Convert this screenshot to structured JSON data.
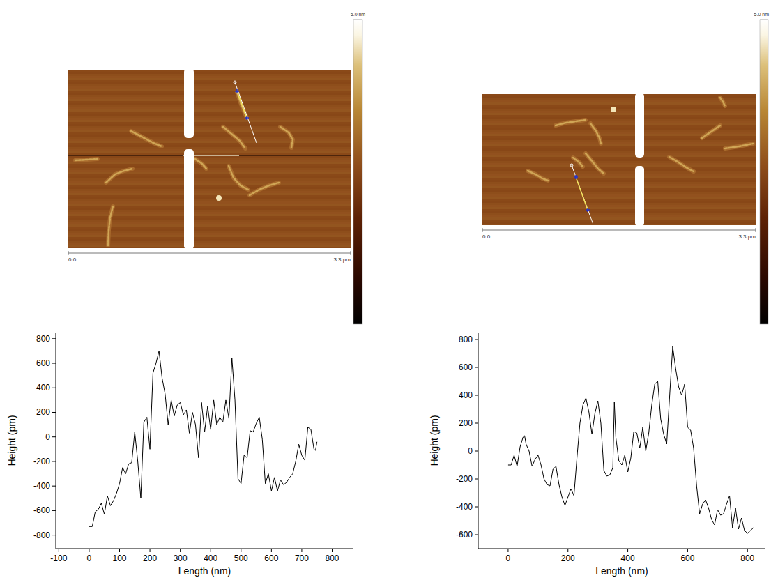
{
  "chart_data": [
    {
      "type": "image",
      "colorbar": {
        "range": [
          0,
          5
        ],
        "ticks": [
          {
            "value": 5,
            "label": "5.0 nm"
          }
        ]
      },
      "scale_bar": {
        "range": [
          0,
          3.3
        ],
        "ticks": [
          {
            "value": 0,
            "label": "0.0"
          },
          {
            "value": 3.3,
            "label": "3.3 µm"
          }
        ]
      }
    },
    {
      "type": "image",
      "colorbar": {
        "range": [
          0,
          5
        ],
        "ticks": [
          {
            "value": 5,
            "label": "5.0 nm"
          }
        ]
      },
      "scale_bar": {
        "range": [
          0,
          3.3
        ],
        "ticks": [
          {
            "value": 0,
            "label": "0.0"
          },
          {
            "value": 3.3,
            "label": "3.3 µm"
          }
        ]
      }
    },
    {
      "type": "line",
      "xlabel": "Length (nm)",
      "ylabel": "Height (pm)",
      "xlim": [
        -110,
        870
      ],
      "ylim": [
        -910,
        850
      ],
      "xticks": [
        -100,
        0,
        100,
        200,
        300,
        400,
        500,
        600,
        700,
        800
      ],
      "yticks": [
        -800,
        -600,
        -400,
        -200,
        0,
        200,
        400,
        600,
        800
      ],
      "x": [
        0,
        10,
        20,
        30,
        40,
        50,
        60,
        70,
        80,
        90,
        100,
        110,
        120,
        130,
        140,
        150,
        160,
        170,
        180,
        190,
        200,
        210,
        220,
        230,
        240,
        250,
        260,
        270,
        280,
        290,
        300,
        310,
        320,
        330,
        340,
        350,
        360,
        370,
        380,
        390,
        400,
        410,
        420,
        430,
        440,
        450,
        460,
        470,
        480,
        490,
        500,
        510,
        520,
        530,
        540,
        550,
        560,
        570,
        580,
        590,
        600,
        610,
        620,
        630,
        640,
        650,
        660,
        670,
        680,
        690,
        700,
        710,
        720,
        730,
        740,
        745,
        750
      ],
      "series": [
        {
          "color": "#000000",
          "values": [
            -730,
            -730,
            -610,
            -590,
            -540,
            -630,
            -480,
            -560,
            -520,
            -460,
            -380,
            -250,
            -300,
            -220,
            -210,
            40,
            -200,
            -500,
            120,
            160,
            -100,
            520,
            600,
            700,
            480,
            350,
            100,
            300,
            170,
            260,
            280,
            180,
            220,
            30,
            200,
            100,
            -170,
            280,
            40,
            250,
            60,
            300,
            100,
            160,
            120,
            300,
            150,
            640,
            300,
            -340,
            -380,
            -150,
            -170,
            50,
            40,
            110,
            160,
            -20,
            -380,
            -300,
            -440,
            -330,
            -440,
            -350,
            -390,
            -370,
            -330,
            -300,
            -200,
            -60,
            -150,
            -190,
            80,
            60,
            -100,
            -110,
            -40
          ]
        }
      ]
    },
    {
      "type": "line",
      "xlabel": "Length (nm)",
      "ylabel": "Height (pm)",
      "xlim": [
        -100,
        860
      ],
      "ylim": [
        -700,
        850
      ],
      "xticks": [
        0,
        200,
        400,
        600,
        800
      ],
      "yticks": [
        -600,
        -400,
        -200,
        0,
        200,
        400,
        600,
        800
      ],
      "x": [
        0,
        10,
        20,
        30,
        40,
        50,
        55,
        60,
        70,
        80,
        90,
        100,
        110,
        120,
        130,
        140,
        150,
        160,
        170,
        180,
        190,
        200,
        210,
        220,
        230,
        240,
        250,
        260,
        270,
        280,
        290,
        300,
        310,
        320,
        330,
        340,
        350,
        355,
        360,
        370,
        380,
        390,
        400,
        410,
        420,
        430,
        440,
        450,
        460,
        470,
        480,
        490,
        500,
        510,
        520,
        530,
        540,
        550,
        560,
        570,
        580,
        590,
        600,
        610,
        620,
        630,
        640,
        650,
        660,
        670,
        680,
        690,
        700,
        710,
        720,
        730,
        740,
        750,
        760,
        770,
        780,
        790,
        800,
        810,
        820
      ],
      "series": [
        {
          "color": "#000000",
          "values": [
            -100,
            -100,
            -30,
            -110,
            30,
            100,
            110,
            50,
            0,
            -110,
            -60,
            -30,
            -100,
            -200,
            -240,
            -250,
            -130,
            -110,
            -240,
            -330,
            -390,
            -330,
            -270,
            -320,
            -50,
            200,
            330,
            380,
            280,
            120,
            270,
            360,
            200,
            -140,
            -180,
            -170,
            -120,
            350,
            100,
            -70,
            -100,
            -30,
            -150,
            -50,
            140,
            130,
            20,
            170,
            0,
            130,
            330,
            480,
            500,
            230,
            120,
            50,
            400,
            750,
            590,
            460,
            400,
            480,
            170,
            150,
            20,
            -250,
            -450,
            -380,
            -350,
            -410,
            -490,
            -530,
            -420,
            -460,
            -450,
            -380,
            -320,
            -550,
            -410,
            -560,
            -480,
            -570,
            -590,
            -570,
            -550
          ]
        }
      ]
    }
  ]
}
